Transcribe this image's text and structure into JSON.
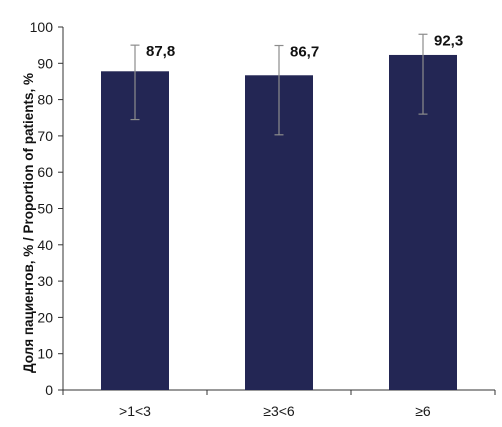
{
  "chart_data": {
    "type": "bar",
    "title": "",
    "xlabel": "",
    "ylabel": "Доля пациентов, % / Proportion of patients, %",
    "ylim": [
      0,
      100
    ],
    "yticks": [
      0,
      10,
      20,
      30,
      40,
      50,
      60,
      70,
      80,
      90,
      100
    ],
    "categories": [
      ">1<3",
      "≥3<6",
      "≥6"
    ],
    "values": [
      87.8,
      86.7,
      92.3
    ],
    "value_labels": [
      "87,8",
      "86,7",
      "92,3"
    ],
    "error_bars": [
      {
        "low": 74.5,
        "high": 95.0
      },
      {
        "low": 70.3,
        "high": 94.9
      },
      {
        "low": 76.0,
        "high": 98.0
      }
    ],
    "grid": false,
    "legend": "none",
    "colors": {
      "bar": "#232654",
      "error_bar": "#8c8c8c",
      "axis": "#333333"
    }
  }
}
